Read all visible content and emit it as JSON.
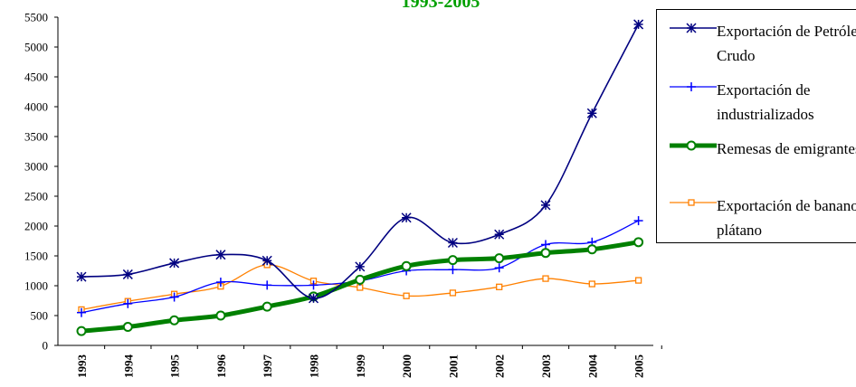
{
  "chart_data": {
    "type": "line",
    "title": "1993-2005",
    "title_color": "#00a000",
    "categories": [
      "1993",
      "1994",
      "1995",
      "1996",
      "1997",
      "1998",
      "1999",
      "2000",
      "2001",
      "2002",
      "2003",
      "2004",
      "2005"
    ],
    "ylim": [
      0,
      5500
    ],
    "yticks": [
      0,
      500,
      1000,
      1500,
      2000,
      2500,
      3000,
      3500,
      4000,
      4500,
      5000,
      5500
    ],
    "grid": false,
    "legend_position": "right",
    "series": [
      {
        "name": "Exportación de Petróleo Crudo",
        "color": "#000080",
        "marker": "asterisk",
        "values": [
          1150,
          1190,
          1380,
          1520,
          1420,
          790,
          1320,
          2140,
          1720,
          1860,
          2350,
          3890,
          5380
        ]
      },
      {
        "name": "Exportación de industrializados",
        "color": "#0000ff",
        "marker": "plus",
        "values": [
          550,
          700,
          810,
          1060,
          1010,
          1010,
          1080,
          1250,
          1270,
          1300,
          1690,
          1730,
          2090
        ]
      },
      {
        "name": "Remesas de emigrantes",
        "color": "#008000",
        "marker": "circle",
        "values": [
          240,
          310,
          420,
          500,
          650,
          820,
          1100,
          1330,
          1430,
          1460,
          1550,
          1610,
          1730
        ]
      },
      {
        "name": "Exportación de banano y plátano",
        "color": "#ff8000",
        "marker": "square",
        "values": [
          600,
          740,
          860,
          990,
          1350,
          1080,
          970,
          830,
          880,
          980,
          1120,
          1030,
          1090
        ]
      }
    ]
  }
}
